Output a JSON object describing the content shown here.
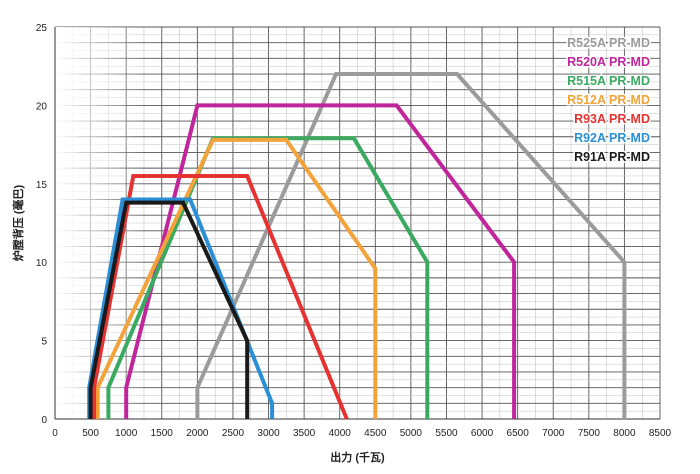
{
  "chart_data": {
    "type": "line",
    "title": "",
    "xlabel": "出力 (千瓦)",
    "ylabel": "炉膛背压 (毫巴)",
    "xlim": [
      0,
      8500
    ],
    "ylim": [
      0,
      25
    ],
    "x_ticks": [
      0,
      500,
      1000,
      1500,
      2000,
      2500,
      3000,
      3500,
      4000,
      4500,
      5000,
      5500,
      6000,
      6500,
      7000,
      7500,
      8000,
      8500
    ],
    "y_ticks": [
      0,
      5,
      10,
      15,
      20,
      25
    ],
    "x_tick_labels": [
      "0",
      "500",
      "1000",
      "1500",
      "2000",
      "2500",
      "3000",
      "3500",
      "4000",
      "4500",
      "5000",
      "5500",
      "6000",
      "6500",
      "7000",
      "7500",
      "8000",
      "8500"
    ],
    "y_tick_labels": [
      "0",
      "5",
      "10",
      "15",
      "20",
      "25"
    ],
    "grid": true,
    "legend_position": "top-right",
    "series": [
      {
        "name": "R525A PR-MD",
        "color": "#9b9b9b",
        "x": [
          2000,
          2000,
          3950,
          5650,
          8000,
          8000
        ],
        "y": [
          0,
          2,
          22,
          22,
          10,
          0
        ]
      },
      {
        "name": "R520A PR-MD",
        "color": "#c0259b",
        "x": [
          1000,
          1000,
          2000,
          4800,
          6450,
          6450
        ],
        "y": [
          0,
          2,
          20,
          20,
          10,
          0
        ]
      },
      {
        "name": "R515A PR-MD",
        "color": "#3aaa60",
        "x": [
          750,
          750,
          2220,
          4200,
          5230,
          5230
        ],
        "y": [
          0,
          2,
          17.9,
          17.9,
          10,
          0
        ]
      },
      {
        "name": "R512A PR-MD",
        "color": "#f2a33a",
        "x": [
          600,
          600,
          2220,
          3250,
          4500,
          4500
        ],
        "y": [
          0,
          2,
          17.8,
          17.8,
          9.6,
          0
        ]
      },
      {
        "name": "R93A PR-MD",
        "color": "#e63331",
        "x": [
          550,
          550,
          1100,
          2700,
          4100,
          4100
        ],
        "y": [
          0,
          2,
          15.5,
          15.5,
          0,
          0
        ]
      },
      {
        "name": "R92A PR-MD",
        "color": "#2a8fd6",
        "x": [
          480,
          480,
          950,
          1900,
          3050,
          3050
        ],
        "y": [
          0,
          2,
          14,
          14,
          1,
          0
        ]
      },
      {
        "name": "R91A PR-MD",
        "color": "#1a1a1a",
        "x": [
          500,
          500,
          1000,
          1800,
          2700,
          2700
        ],
        "y": [
          0,
          2,
          13.8,
          13.8,
          5,
          0
        ]
      }
    ]
  }
}
